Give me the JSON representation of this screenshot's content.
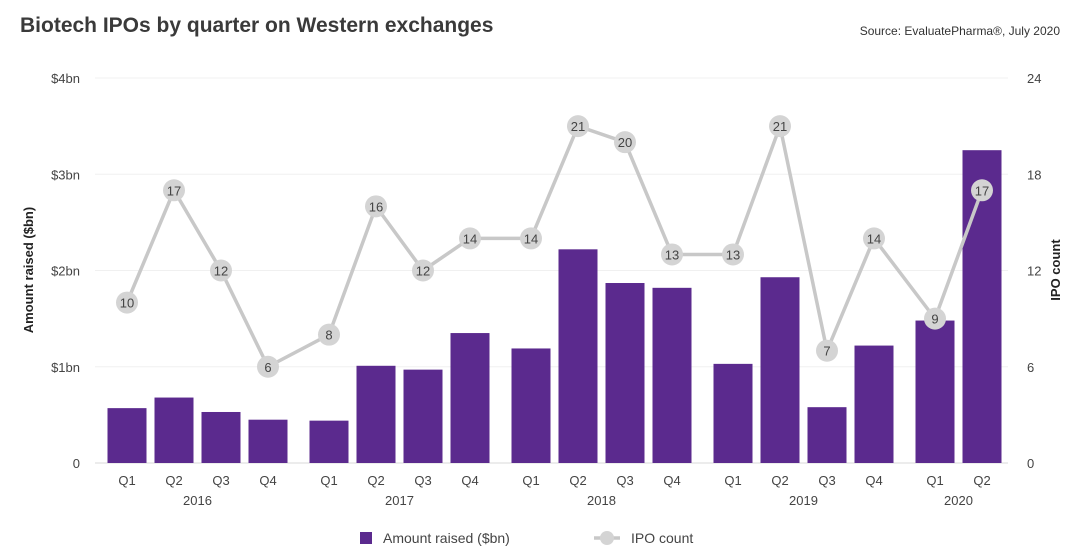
{
  "title": "Biotech IPOs by quarter on Western exchanges",
  "source": "Source: EvaluatePharma®, July 2020",
  "chart_data": {
    "type": "bar",
    "categories": [
      "Q1 2016",
      "Q2 2016",
      "Q3 2016",
      "Q4 2016",
      "Q1 2017",
      "Q2 2017",
      "Q3 2017",
      "Q4 2017",
      "Q1 2018",
      "Q2 2018",
      "Q3 2018",
      "Q4 2018",
      "Q1 2019",
      "Q2 2019",
      "Q3 2019",
      "Q4 2019",
      "Q1 2020",
      "Q2 2020"
    ],
    "quarter_labels": [
      "Q1",
      "Q2",
      "Q3",
      "Q4",
      "Q1",
      "Q2",
      "Q3",
      "Q4",
      "Q1",
      "Q2",
      "Q3",
      "Q4",
      "Q1",
      "Q2",
      "Q3",
      "Q4",
      "Q1",
      "Q2"
    ],
    "years": [
      "2016",
      "2017",
      "2018",
      "2019",
      "2020"
    ],
    "series": [
      {
        "name": "Amount raised ($bn)",
        "type": "bar",
        "axis": "left",
        "color": "#5b2a8e",
        "values": [
          0.57,
          0.68,
          0.53,
          0.45,
          0.44,
          1.01,
          0.97,
          1.35,
          1.19,
          2.22,
          1.87,
          1.82,
          1.03,
          1.93,
          0.58,
          1.22,
          1.48,
          3.25
        ]
      },
      {
        "name": "IPO count",
        "type": "line",
        "axis": "right",
        "color": "#c8c8c8",
        "values": [
          10,
          17,
          12,
          6,
          8,
          16,
          12,
          14,
          14,
          21,
          20,
          13,
          13,
          21,
          7,
          14,
          9,
          17
        ]
      }
    ],
    "ylabel": "Amount raised ($bn)",
    "y2label": "IPO count",
    "ylim": [
      0,
      4
    ],
    "y2lim": [
      0,
      24
    ],
    "yticks": [
      "0",
      "$1bn",
      "$2bn",
      "$3bn",
      "$4bn"
    ],
    "y2ticks": [
      "0",
      "6",
      "12",
      "18",
      "24"
    ],
    "legend": [
      "Amount raised ($bn)",
      "IPO count"
    ],
    "legend_position": "bottom",
    "grid": true
  }
}
